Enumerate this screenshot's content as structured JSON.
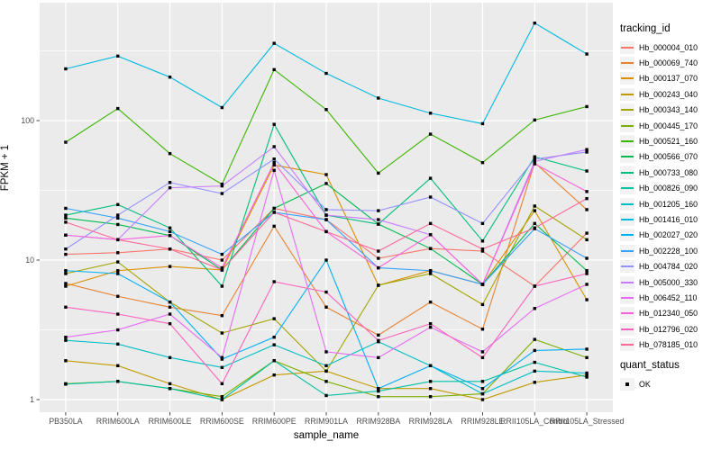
{
  "chart_data": {
    "type": "line",
    "title": "",
    "xlabel": "sample_name",
    "ylabel": "FPKM + 1",
    "y_scale": "log10",
    "y_ticks": [
      1,
      10,
      100
    ],
    "ylim": [
      0.9,
      700
    ],
    "grid": "on",
    "legend_position": "right",
    "legend_title": "tracking_id",
    "point_marker": {
      "shape": "square",
      "color": "#000000"
    },
    "panel_background": "#EBEBEB",
    "gridline_color": "#FFFFFF",
    "categories": [
      "PB350LA",
      "RRIM600LA",
      "RRIM600LE",
      "RRIM600SE",
      "RRIM600PE",
      "RRIM901LA",
      "RRIM928BA",
      "RRIM928LA",
      "RRIM928LE",
      "RRII105LA_Control",
      "RRII105LA_Stressed"
    ],
    "series": [
      {
        "name": "Hb_000004_010",
        "color": "#F8766D",
        "values": [
          11,
          11.3,
          12,
          10,
          23.5,
          19.5,
          10.3,
          12.1,
          11.6,
          6.5,
          15.6
        ]
      },
      {
        "name": "Hb_000069_740",
        "color": "#EA8331",
        "values": [
          6.8,
          5.5,
          4.6,
          4.0,
          17.5,
          4.6,
          2.9,
          5.0,
          3.2,
          50,
          23
        ]
      },
      {
        "name": "Hb_000137_070",
        "color": "#D89000",
        "values": [
          6.5,
          8.4,
          9,
          8.5,
          48,
          41,
          6.6,
          8.4,
          6.7,
          22.6,
          5.2
        ]
      },
      {
        "name": "Hb_000243_040",
        "color": "#C09B00",
        "values": [
          1.9,
          1.75,
          1.3,
          1.0,
          1.5,
          1.6,
          1.2,
          1.2,
          1.0,
          1.33,
          1.5
        ]
      },
      {
        "name": "Hb_000343_140",
        "color": "#A3A500",
        "values": [
          8,
          9.7,
          5,
          3.0,
          3.8,
          1.6,
          6.6,
          8,
          4.8,
          24.4,
          14
        ]
      },
      {
        "name": "Hb_000445_170",
        "color": "#7CAE00",
        "values": [
          1.3,
          1.35,
          1.2,
          1.05,
          1.9,
          1.35,
          1.05,
          1.05,
          1.1,
          2.7,
          2.0
        ]
      },
      {
        "name": "Hb_000521_160",
        "color": "#39B600",
        "values": [
          70,
          122,
          58,
          35,
          232,
          120,
          42,
          80,
          50,
          101,
          126
        ]
      },
      {
        "name": "Hb_000566_070",
        "color": "#00BB4E",
        "values": [
          20,
          18,
          15,
          8.5,
          23.5,
          35.4,
          18.1,
          12.1,
          6.7,
          18.3,
          8.4
        ]
      },
      {
        "name": "Hb_000733_080",
        "color": "#00BF7D",
        "values": [
          21,
          25,
          17,
          6.5,
          94,
          21,
          18.1,
          38.6,
          13.7,
          55,
          43.5
        ]
      },
      {
        "name": "Hb_000826_090",
        "color": "#00C1A3",
        "values": [
          1.29,
          1.35,
          1.2,
          1.0,
          1.9,
          1.07,
          1.15,
          1.35,
          1.35,
          1.85,
          1.45
        ]
      },
      {
        "name": "Hb_001205_160",
        "color": "#00BFC4",
        "values": [
          2.66,
          2.5,
          2.0,
          1.7,
          2.47,
          1.75,
          2.6,
          1.75,
          1.1,
          1.6,
          1.55
        ]
      },
      {
        "name": "Hb_001416_010",
        "color": "#00BAE0",
        "values": [
          235,
          290,
          205,
          124,
          358,
          218,
          145,
          113,
          95,
          500,
          300
        ]
      },
      {
        "name": "Hb_002027_020",
        "color": "#00B0F6",
        "values": [
          8.4,
          8,
          5,
          1.95,
          2.8,
          10,
          1.2,
          1.75,
          1.2,
          2.25,
          2.3
        ]
      },
      {
        "name": "Hb_002228_100",
        "color": "#35A2FF",
        "values": [
          23.5,
          20,
          16,
          11,
          22,
          19.5,
          8.8,
          8.4,
          6.7,
          16.8,
          10.3
        ]
      },
      {
        "name": "Hb_004784_020",
        "color": "#9590FF",
        "values": [
          12,
          21,
          36,
          30,
          53,
          23,
          22.6,
          28.3,
          18.3,
          53,
          59.5
        ]
      },
      {
        "name": "Hb_005000_330",
        "color": "#C77CFF",
        "values": [
          15.1,
          14,
          33,
          34,
          65,
          21,
          19.5,
          15.2,
          6.7,
          51,
          62
        ]
      },
      {
        "name": "Hb_006452_110",
        "color": "#E76BF3",
        "values": [
          2.8,
          3.16,
          4.1,
          2.0,
          44,
          2.2,
          2.0,
          3.3,
          2.2,
          4.5,
          6.7
        ]
      },
      {
        "name": "Hb_012340_050",
        "color": "#FA62DB",
        "values": [
          15.1,
          14,
          15,
          8.8,
          50,
          16,
          8.8,
          15.2,
          6.7,
          49,
          31
        ]
      },
      {
        "name": "Hb_012796_020",
        "color": "#FF62BC",
        "values": [
          4.6,
          4.1,
          3.5,
          1.3,
          7.0,
          5.9,
          2.65,
          3.5,
          2.0,
          6.5,
          8
        ]
      },
      {
        "name": "Hb_078185_010",
        "color": "#FF6A98",
        "values": [
          18.7,
          14,
          12,
          8.5,
          22,
          16,
          11.6,
          18.3,
          12,
          17,
          27.6
        ]
      }
    ],
    "quant_legend": {
      "title": "quant_status",
      "items": [
        "OK"
      ]
    }
  }
}
